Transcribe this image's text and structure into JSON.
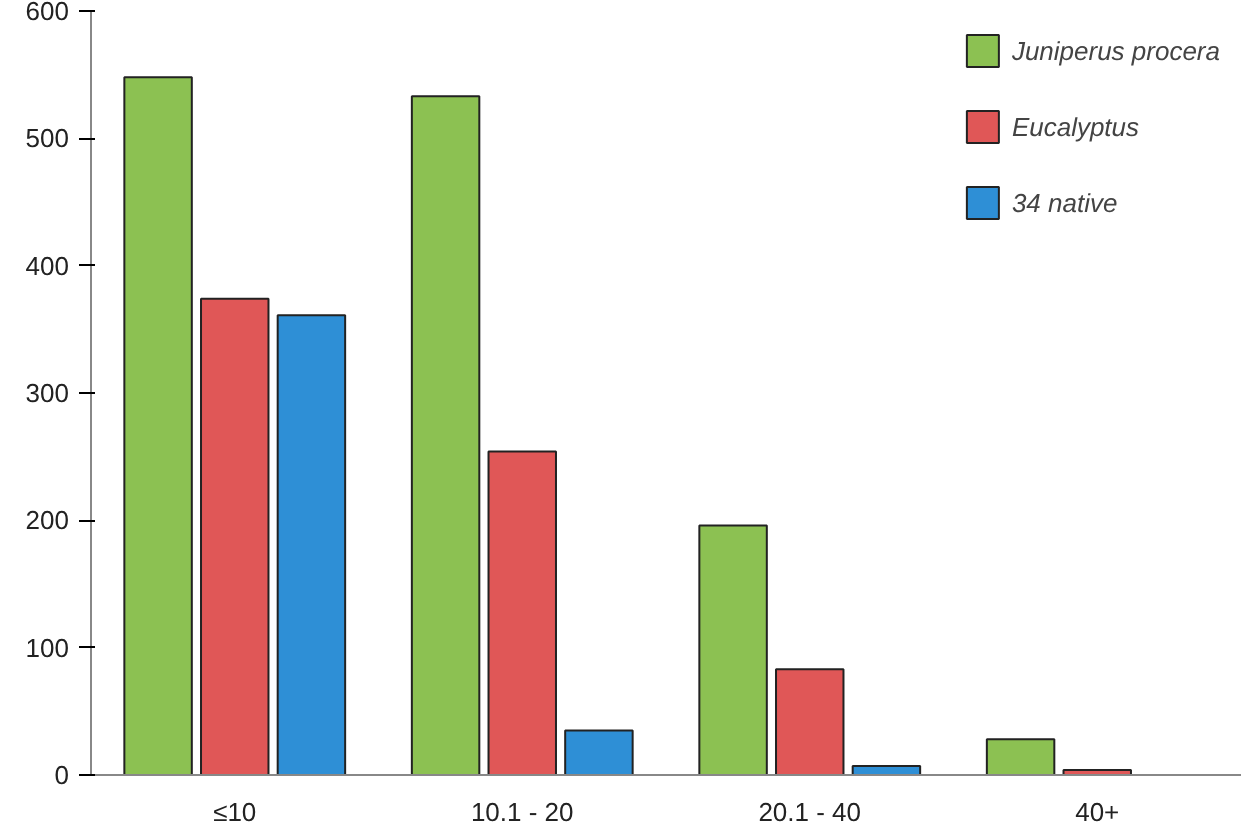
{
  "chart_data": {
    "type": "bar",
    "categories": [
      "≤10",
      "10.1 - 20",
      "20.1 - 40",
      "40+"
    ],
    "series": [
      {
        "name": "Juniperus procera",
        "color": "#8cc152",
        "values": [
          548,
          533,
          196,
          28
        ]
      },
      {
        "name": "Eucalyptus",
        "color": "#e05757",
        "values": [
          374,
          254,
          83,
          4
        ]
      },
      {
        "name": "34 native",
        "color": "#2e8fd6",
        "values": [
          361,
          35,
          7,
          null
        ]
      }
    ],
    "ylim": [
      0,
      600
    ],
    "yticks": [
      0,
      100,
      200,
      300,
      400,
      500,
      600
    ],
    "grid": false,
    "legend": "top right"
  }
}
